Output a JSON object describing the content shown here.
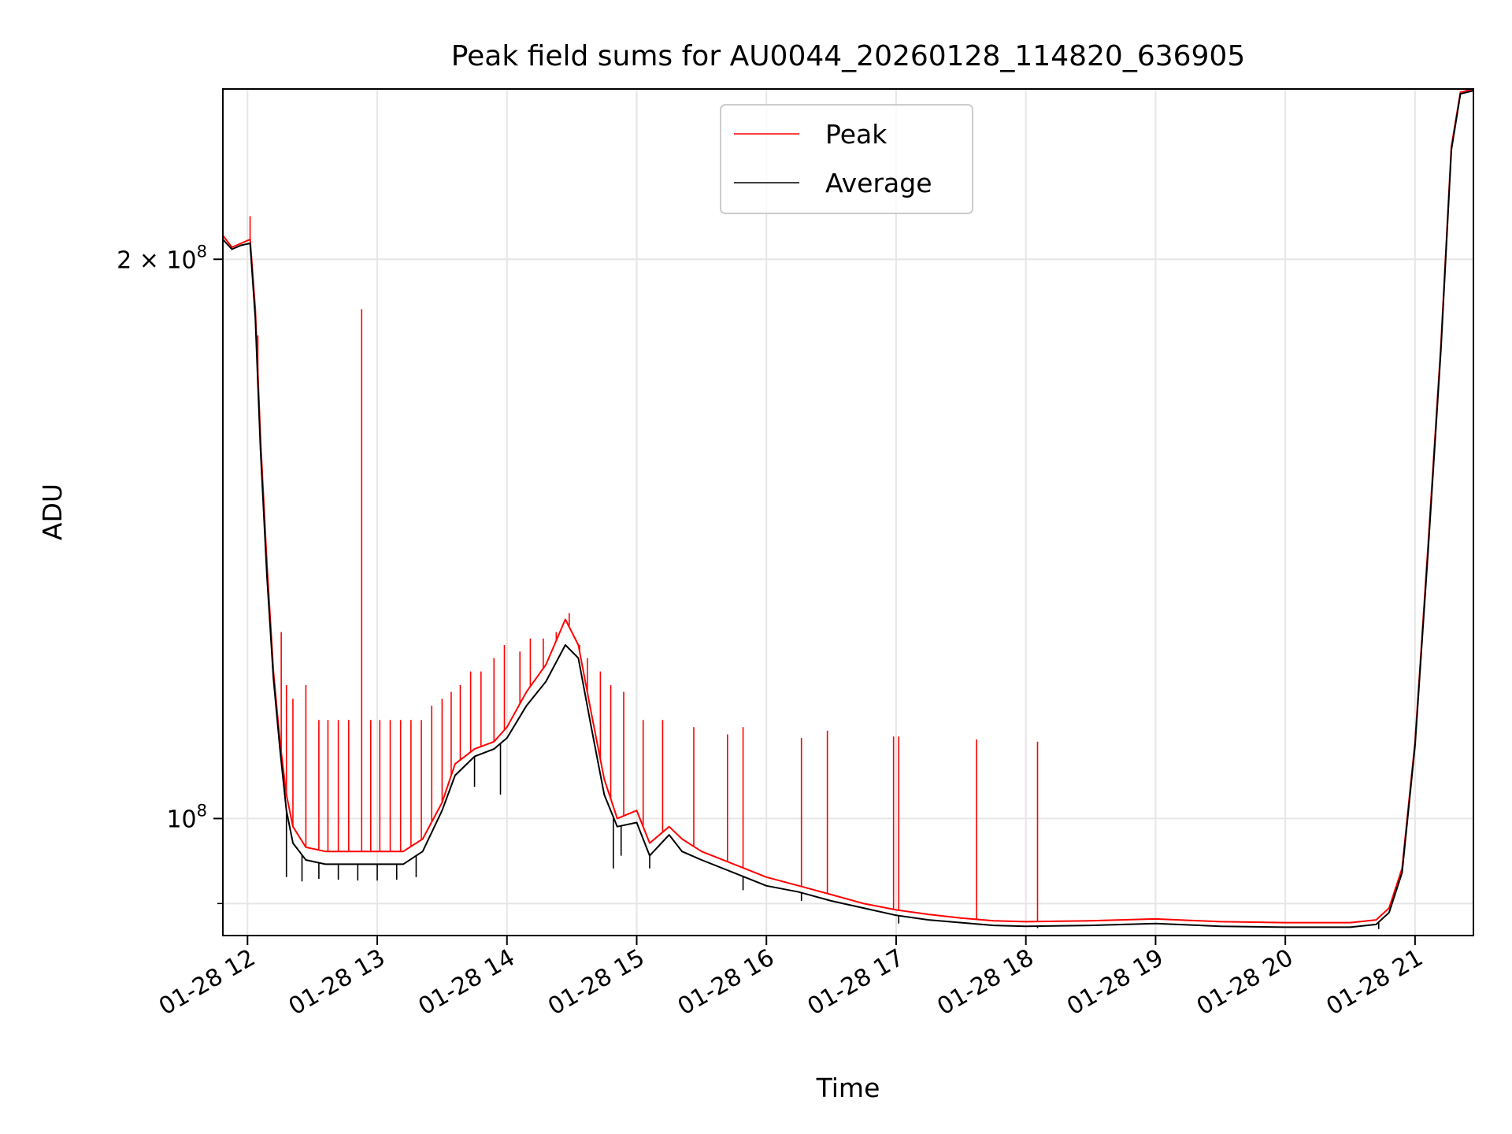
{
  "chart_data": {
    "type": "line",
    "title": "Peak field sums for AU0044_20260128_114820_636905",
    "xlabel": "Time",
    "ylabel": "ADU",
    "yscale": "log",
    "grid": true,
    "legend_position": "top-center",
    "x_unit": "hours since 01-28 00:00",
    "xlim": [
      11.81,
      21.45
    ],
    "ylim": [
      86500000,
      247000000
    ],
    "x_ticks": [
      {
        "value": 12,
        "label": "01-28 12"
      },
      {
        "value": 13,
        "label": "01-28 13"
      },
      {
        "value": 14,
        "label": "01-28 14"
      },
      {
        "value": 15,
        "label": "01-28 15"
      },
      {
        "value": 16,
        "label": "01-28 16"
      },
      {
        "value": 17,
        "label": "01-28 17"
      },
      {
        "value": 18,
        "label": "01-28 18"
      },
      {
        "value": 19,
        "label": "01-28 19"
      },
      {
        "value": 20,
        "label": "01-28 20"
      },
      {
        "value": 21,
        "label": "01-28 21"
      }
    ],
    "y_ticks": [
      {
        "value": 100000000,
        "label_base": "10",
        "label_exp": "8",
        "label_prefix": ""
      },
      {
        "value": 200000000,
        "label_base": "10",
        "label_exp": "8",
        "label_prefix": "2 × "
      }
    ],
    "series": [
      {
        "name": "Peak",
        "color": "#ff0000",
        "points": [
          [
            11.81,
            206000000
          ],
          [
            11.88,
            203000000
          ],
          [
            11.95,
            204000000
          ],
          [
            12.02,
            205000000
          ],
          [
            12.06,
            188000000
          ],
          [
            12.1,
            160000000
          ],
          [
            12.15,
            137000000
          ],
          [
            12.2,
            120000000
          ],
          [
            12.25,
            110000000
          ],
          [
            12.3,
            103000000
          ],
          [
            12.35,
            99000000
          ],
          [
            12.45,
            96500000
          ],
          [
            12.6,
            96000000
          ],
          [
            12.8,
            96000000
          ],
          [
            13.0,
            96000000
          ],
          [
            13.2,
            96000000
          ],
          [
            13.35,
            97500000
          ],
          [
            13.5,
            102000000
          ],
          [
            13.6,
            107000000
          ],
          [
            13.75,
            109000000
          ],
          [
            13.9,
            110000000
          ],
          [
            14.0,
            112000000
          ],
          [
            14.15,
            117000000
          ],
          [
            14.3,
            121000000
          ],
          [
            14.45,
            128000000
          ],
          [
            14.55,
            124000000
          ],
          [
            14.65,
            114000000
          ],
          [
            14.75,
            105000000
          ],
          [
            14.85,
            100000000
          ],
          [
            15.0,
            101000000
          ],
          [
            15.1,
            97000000
          ],
          [
            15.25,
            99000000
          ],
          [
            15.35,
            97500000
          ],
          [
            15.5,
            96000000
          ],
          [
            15.75,
            94500000
          ],
          [
            16.0,
            93000000
          ],
          [
            16.25,
            92000000
          ],
          [
            16.5,
            91000000
          ],
          [
            16.75,
            90000000
          ],
          [
            17.0,
            89300000
          ],
          [
            17.25,
            88800000
          ],
          [
            17.5,
            88400000
          ],
          [
            17.75,
            88100000
          ],
          [
            18.0,
            88000000
          ],
          [
            18.5,
            88100000
          ],
          [
            19.0,
            88300000
          ],
          [
            19.5,
            88000000
          ],
          [
            20.0,
            87900000
          ],
          [
            20.5,
            87900000
          ],
          [
            20.7,
            88200000
          ],
          [
            20.8,
            89500000
          ],
          [
            20.9,
            94000000
          ],
          [
            21.0,
            110000000
          ],
          [
            21.1,
            140000000
          ],
          [
            21.2,
            180000000
          ],
          [
            21.28,
            230000000
          ],
          [
            21.35,
            246000000
          ],
          [
            21.45,
            247000000
          ]
        ],
        "spikes": [
          [
            12.02,
            211000000
          ],
          [
            12.08,
            182000000
          ],
          [
            12.26,
            126000000
          ],
          [
            12.3,
            118000000
          ],
          [
            12.35,
            116000000
          ],
          [
            12.45,
            118000000
          ],
          [
            12.55,
            113000000
          ],
          [
            12.62,
            113000000
          ],
          [
            12.7,
            113000000
          ],
          [
            12.78,
            113000000
          ],
          [
            12.88,
            188000000
          ],
          [
            12.95,
            113000000
          ],
          [
            13.02,
            113000000
          ],
          [
            13.1,
            113000000
          ],
          [
            13.18,
            113000000
          ],
          [
            13.26,
            113000000
          ],
          [
            13.34,
            113000000
          ],
          [
            13.42,
            115000000
          ],
          [
            13.5,
            116000000
          ],
          [
            13.57,
            117000000
          ],
          [
            13.64,
            118000000
          ],
          [
            13.72,
            120000000
          ],
          [
            13.8,
            120000000
          ],
          [
            13.9,
            122000000
          ],
          [
            13.98,
            124000000
          ],
          [
            14.1,
            123000000
          ],
          [
            14.18,
            125000000
          ],
          [
            14.28,
            125000000
          ],
          [
            14.38,
            126000000
          ],
          [
            14.48,
            129000000
          ],
          [
            14.56,
            124000000
          ],
          [
            14.62,
            122000000
          ],
          [
            14.72,
            120000000
          ],
          [
            14.8,
            118000000
          ],
          [
            14.9,
            117000000
          ],
          [
            15.05,
            113000000
          ],
          [
            15.2,
            113000000
          ],
          [
            15.44,
            112000000
          ],
          [
            15.7,
            111000000
          ],
          [
            15.82,
            112000000
          ],
          [
            16.27,
            110500000
          ],
          [
            16.47,
            111500000
          ],
          [
            16.98,
            110700000
          ],
          [
            17.02,
            110700000
          ],
          [
            17.62,
            110300000
          ],
          [
            18.09,
            110000000
          ]
        ]
      },
      {
        "name": "Average",
        "color": "#000000",
        "points": [
          [
            11.81,
            205000000
          ],
          [
            11.88,
            202500000
          ],
          [
            11.95,
            203500000
          ],
          [
            12.02,
            204000000
          ],
          [
            12.06,
            186000000
          ],
          [
            12.1,
            158000000
          ],
          [
            12.15,
            135000000
          ],
          [
            12.2,
            119000000
          ],
          [
            12.25,
            109000000
          ],
          [
            12.3,
            101000000
          ],
          [
            12.35,
            97000000
          ],
          [
            12.45,
            95000000
          ],
          [
            12.6,
            94500000
          ],
          [
            12.8,
            94500000
          ],
          [
            13.0,
            94500000
          ],
          [
            13.2,
            94500000
          ],
          [
            13.35,
            96000000
          ],
          [
            13.5,
            101000000
          ],
          [
            13.6,
            105500000
          ],
          [
            13.75,
            108000000
          ],
          [
            13.9,
            109000000
          ],
          [
            14.0,
            110500000
          ],
          [
            14.15,
            115000000
          ],
          [
            14.3,
            118500000
          ],
          [
            14.45,
            124000000
          ],
          [
            14.55,
            122000000
          ],
          [
            14.65,
            112000000
          ],
          [
            14.75,
            103000000
          ],
          [
            14.85,
            99000000
          ],
          [
            15.0,
            99500000
          ],
          [
            15.1,
            95500000
          ],
          [
            15.25,
            98000000
          ],
          [
            15.35,
            96000000
          ],
          [
            15.5,
            95000000
          ],
          [
            15.75,
            93500000
          ],
          [
            16.0,
            92000000
          ],
          [
            16.25,
            91300000
          ],
          [
            16.5,
            90300000
          ],
          [
            16.75,
            89500000
          ],
          [
            17.0,
            88700000
          ],
          [
            17.25,
            88200000
          ],
          [
            17.5,
            87900000
          ],
          [
            17.75,
            87600000
          ],
          [
            18.0,
            87500000
          ],
          [
            18.5,
            87600000
          ],
          [
            19.0,
            87800000
          ],
          [
            19.5,
            87500000
          ],
          [
            20.0,
            87400000
          ],
          [
            20.5,
            87400000
          ],
          [
            20.7,
            87700000
          ],
          [
            20.8,
            89000000
          ],
          [
            20.9,
            93500000
          ],
          [
            21.0,
            109500000
          ],
          [
            21.1,
            139000000
          ],
          [
            21.2,
            179000000
          ],
          [
            21.28,
            229000000
          ],
          [
            21.35,
            245500000
          ],
          [
            21.45,
            246500000
          ]
        ],
        "spikes": [
          [
            12.3,
            93000000
          ],
          [
            12.42,
            92500000
          ],
          [
            12.55,
            92800000
          ],
          [
            12.7,
            92700000
          ],
          [
            12.85,
            92600000
          ],
          [
            13.0,
            92600000
          ],
          [
            13.15,
            92700000
          ],
          [
            13.3,
            93000000
          ],
          [
            13.75,
            104000000
          ],
          [
            13.95,
            103000000
          ],
          [
            14.82,
            94000000
          ],
          [
            14.88,
            95500000
          ],
          [
            15.1,
            94000000
          ],
          [
            15.82,
            91500000
          ],
          [
            16.27,
            90300000
          ],
          [
            16.47,
            90500000
          ],
          [
            17.02,
            87800000
          ],
          [
            17.62,
            87700000
          ],
          [
            18.09,
            87300000
          ],
          [
            20.72,
            87200000
          ]
        ]
      }
    ]
  }
}
